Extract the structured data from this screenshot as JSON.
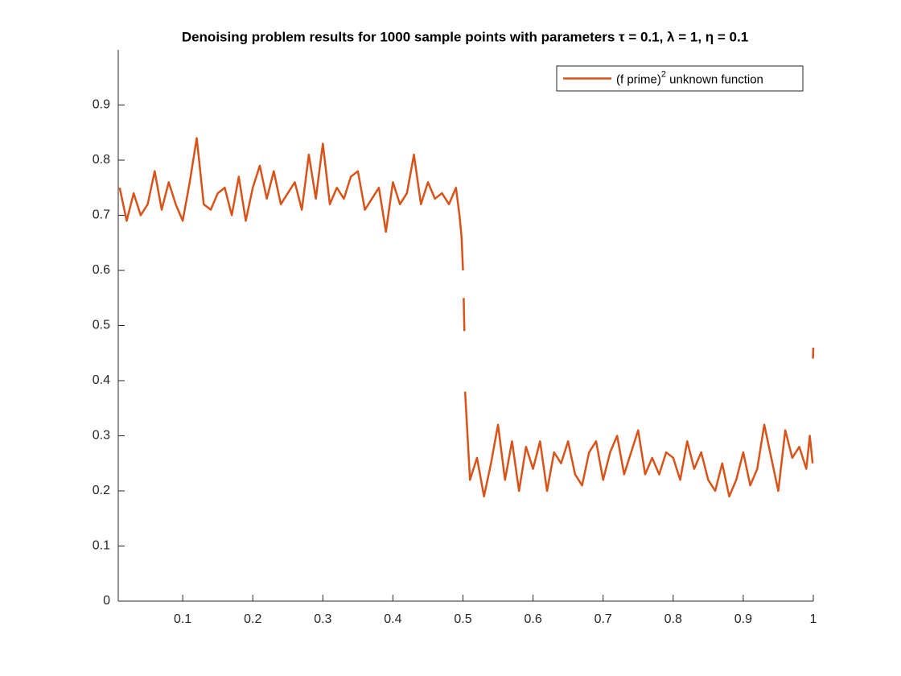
{
  "chart_data": {
    "type": "line",
    "title": "Denoising problem results for 1000 sample points with parameters τ = 0.1, λ = 1, η = 0.1",
    "x": [
      0.01,
      0.02,
      0.03,
      0.04,
      0.05,
      0.06,
      0.07,
      0.08,
      0.09,
      0.1,
      0.11,
      0.12,
      0.13,
      0.14,
      0.15,
      0.16,
      0.17,
      0.18,
      0.19,
      0.2,
      0.21,
      0.22,
      0.23,
      0.24,
      0.25,
      0.26,
      0.27,
      0.28,
      0.29,
      0.3,
      0.31,
      0.32,
      0.33,
      0.34,
      0.35,
      0.36,
      0.37,
      0.38,
      0.39,
      0.4,
      0.41,
      0.42,
      0.43,
      0.44,
      0.45,
      0.46,
      0.47,
      0.48,
      0.49,
      0.495,
      0.498,
      0.5,
      null,
      0.501,
      0.502,
      null,
      0.503,
      0.51,
      0.52,
      0.53,
      0.54,
      0.55,
      0.56,
      0.57,
      0.58,
      0.59,
      0.6,
      0.61,
      0.62,
      0.63,
      0.64,
      0.65,
      0.66,
      0.67,
      0.68,
      0.69,
      0.7,
      0.71,
      0.72,
      0.73,
      0.74,
      0.75,
      0.76,
      0.77,
      0.78,
      0.79,
      0.8,
      0.81,
      0.82,
      0.83,
      0.84,
      0.85,
      0.86,
      0.87,
      0.88,
      0.89,
      0.9,
      0.91,
      0.92,
      0.93,
      0.94,
      0.95,
      0.96,
      0.97,
      0.98,
      0.99,
      0.995,
      0.999,
      null,
      0.9995,
      1.0
    ],
    "series": [
      {
        "name": "(f prime)^2 unknown function",
        "color": "#D95319",
        "values": [
          0.75,
          0.69,
          0.74,
          0.7,
          0.72,
          0.78,
          0.71,
          0.76,
          0.72,
          0.69,
          0.76,
          0.84,
          0.72,
          0.71,
          0.74,
          0.75,
          0.7,
          0.77,
          0.69,
          0.75,
          0.79,
          0.73,
          0.78,
          0.72,
          0.74,
          0.76,
          0.71,
          0.81,
          0.73,
          0.83,
          0.72,
          0.75,
          0.73,
          0.77,
          0.78,
          0.71,
          0.73,
          0.75,
          0.67,
          0.76,
          0.72,
          0.74,
          0.81,
          0.72,
          0.76,
          0.73,
          0.74,
          0.72,
          0.75,
          0.7,
          0.66,
          0.6,
          null,
          0.55,
          0.49,
          null,
          0.38,
          0.22,
          0.26,
          0.19,
          0.25,
          0.32,
          0.22,
          0.29,
          0.2,
          0.28,
          0.24,
          0.29,
          0.2,
          0.27,
          0.25,
          0.29,
          0.23,
          0.21,
          0.27,
          0.29,
          0.22,
          0.27,
          0.3,
          0.23,
          0.27,
          0.31,
          0.23,
          0.26,
          0.23,
          0.27,
          0.26,
          0.22,
          0.29,
          0.24,
          0.27,
          0.22,
          0.2,
          0.25,
          0.19,
          0.22,
          0.27,
          0.21,
          0.24,
          0.32,
          0.26,
          0.2,
          0.31,
          0.26,
          0.28,
          0.24,
          0.3,
          0.25,
          null,
          0.44,
          0.46
        ]
      }
    ],
    "xlim": [
      0.008,
      1
    ],
    "xticks": [
      0.1,
      0.2,
      0.3,
      0.4,
      0.5,
      0.6,
      0.7,
      0.8,
      0.9,
      1
    ],
    "ylim": [
      0,
      1
    ],
    "yticks": [
      0,
      0.1,
      0.2,
      0.3,
      0.4,
      0.5,
      0.6,
      0.7,
      0.8,
      0.9
    ],
    "legend": "northeast"
  }
}
